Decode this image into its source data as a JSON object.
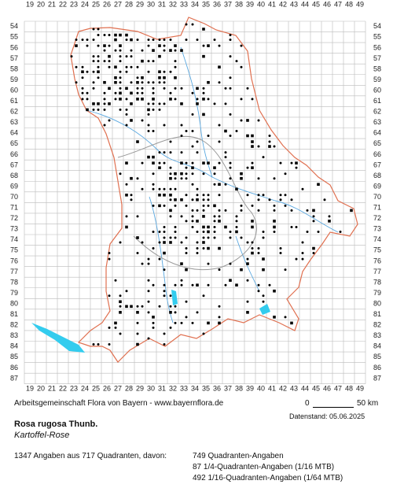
{
  "map": {
    "column_labels": [
      19,
      20,
      21,
      22,
      23,
      24,
      25,
      26,
      27,
      28,
      29,
      30,
      31,
      32,
      33,
      34,
      35,
      36,
      37,
      38,
      39,
      40,
      41,
      42,
      43,
      44,
      45,
      46,
      47,
      48,
      49
    ],
    "row_labels": [
      54,
      55,
      56,
      57,
      58,
      59,
      60,
      61,
      62,
      63,
      64,
      65,
      66,
      67,
      68,
      69,
      70,
      71,
      72,
      73,
      74,
      75,
      76,
      77,
      78,
      79,
      80,
      81,
      82,
      83,
      84,
      85,
      86,
      87
    ],
    "scale_start": "0",
    "scale_end": "50 km",
    "credit": "Arbeitsgemeinschaft Flora von Bayern - www.bayernflora.de",
    "data_date": "Datenstand: 05.06.2025",
    "species": "Rosa rugosa Thunb.",
    "common_name": "Kartoffel-Rose",
    "summary": "1347 Angaben aus 717 Quadranten, davon:",
    "breakdown": [
      "749 Quadranten-Angaben",
      "87 1/4-Quadranten-Angaben (1/16 MTB)",
      "492 1/16-Quadranten-Angaben (1/64 MTB)"
    ]
  }
}
